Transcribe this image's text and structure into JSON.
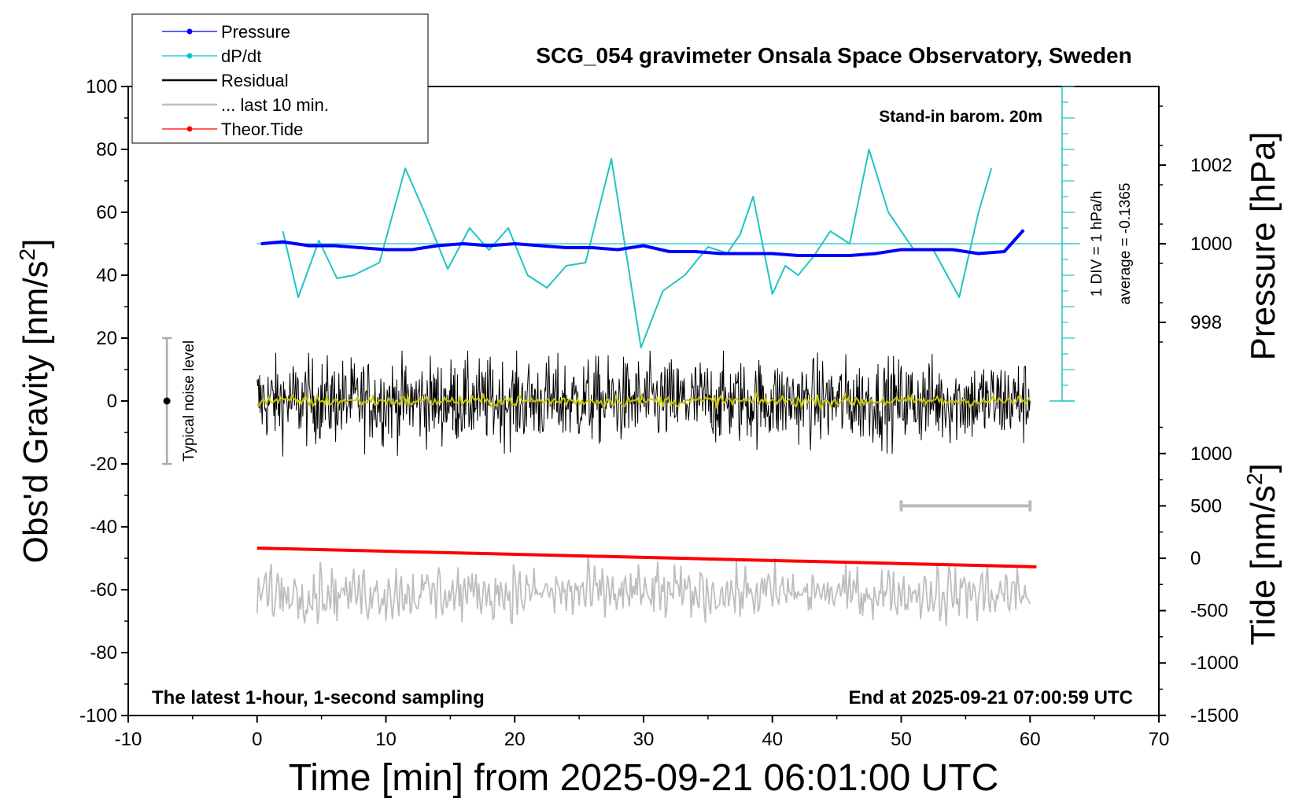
{
  "chart_data": {
    "type": "line",
    "title": "SCG_054 gravimeter Onsala Space Observatory, Sweden",
    "subtitle_top_right": "Stand-in barom. 20m",
    "footer_left": "The latest 1-hour, 1-second sampling",
    "footer_right": "End at 2025-09-21 07:00:59 UTC",
    "xlabel": "Time [min] from 2025-09-21 06:01:00 UTC",
    "ylabel_left": "Obs'd Gravity [nm/s",
    "ylabel_left_sup": "2",
    "ylabel_left_end": "]",
    "ylabel_right_pressure": "Pressure [hPa]",
    "ylabel_right_tide": "Tide [nm/s",
    "ylabel_right_tide_sup": "2",
    "ylabel_right_tide_end": "]",
    "xlim": [
      -10,
      70
    ],
    "xticks": [
      "-10",
      "0",
      "10",
      "20",
      "30",
      "40",
      "50",
      "60",
      "70"
    ],
    "ylim_left": [
      -100,
      100
    ],
    "yticks_left": [
      "100",
      "80",
      "60",
      "40",
      "20",
      "0",
      "-20",
      "-40",
      "-60",
      "-80",
      "-100"
    ],
    "pressure_ticks": [
      "1002",
      "1000",
      "998"
    ],
    "pressure_tick_values": [
      1002,
      1000,
      998
    ],
    "tide_ticks": [
      "1000",
      "500",
      "0",
      "-500",
      "-1000",
      "-1500"
    ],
    "tide_tick_values": [
      1000,
      500,
      0,
      -500,
      -1000,
      -1500
    ],
    "dpdt_scale_label": "1 DIV = 1 hPa/h",
    "dpdt_average_label": "average = -0.1365",
    "noise_label": "Typical noise level",
    "noise_range": [
      -20,
      20
    ],
    "legend": [
      {
        "label": "Pressure",
        "color": "#0000ff",
        "marker": true
      },
      {
        "label": "dP/dt",
        "color": "#00c8c8",
        "marker": true
      },
      {
        "label": "Residual",
        "color": "#000000",
        "marker": false
      },
      {
        "label": "... last 10 min.",
        "color": "#bebebe",
        "marker": false
      },
      {
        "label": "Theor.Tide",
        "color": "#ff0000",
        "marker": true
      }
    ],
    "colors": {
      "pressure": "#0000ff",
      "dpdt": "#20c4c4",
      "residual": "#000000",
      "residual_smooth": "#c8c800",
      "last10": "#bebebe",
      "tide": "#ff0000"
    },
    "series": [
      {
        "name": "Pressure",
        "unit": "hPa",
        "x": [
          0.3,
          2,
          4,
          6,
          8,
          10,
          12,
          14,
          16,
          18,
          20,
          22,
          24,
          26,
          28,
          30,
          32,
          34,
          36,
          38,
          40,
          42,
          44,
          46,
          48,
          50,
          52,
          54,
          56,
          58,
          59.5
        ],
        "y": [
          1000.0,
          1000.05,
          999.95,
          999.95,
          999.9,
          999.85,
          999.85,
          999.95,
          1000.0,
          999.95,
          1000.0,
          999.95,
          999.9,
          999.9,
          999.85,
          999.95,
          999.8,
          999.8,
          999.75,
          999.75,
          999.75,
          999.7,
          999.7,
          999.7,
          999.75,
          999.85,
          999.85,
          999.85,
          999.75,
          999.8,
          1000.35
        ]
      },
      {
        "name": "dP/dt",
        "unit": "nm/s2 plot units (1 DIV = 1 hPa/h)",
        "x": [
          2,
          3.2,
          4.8,
          6.2,
          7.5,
          9.5,
          11.5,
          13,
          14.8,
          16.5,
          18,
          19.5,
          21,
          22.5,
          24,
          25.5,
          27.5,
          29.8,
          31.5,
          33.2,
          35,
          36.5,
          37.5,
          38.5,
          40,
          41,
          42,
          43.2,
          44.5,
          46,
          47.5,
          49,
          51,
          52.5,
          54.5,
          56,
          57
        ],
        "y": [
          54,
          33,
          51,
          39,
          40,
          44,
          74,
          60,
          42,
          55,
          48,
          55,
          40,
          36,
          43,
          44,
          77,
          17,
          35,
          40,
          49,
          47,
          53,
          65,
          34,
          43,
          40,
          46,
          54,
          50,
          80,
          60,
          48,
          48,
          33,
          60,
          74
        ]
      },
      {
        "name": "Residual",
        "unit": "nm/s2",
        "x_range": [
          0,
          60
        ],
        "amplitude_nm_s2": 8,
        "min": -21,
        "max": 16,
        "mean": 0
      },
      {
        "name": "... last 10 min.",
        "unit": "nm/s2",
        "x_range": [
          0,
          60
        ],
        "offset_nm_s2": -61,
        "amplitude_nm_s2": 7
      },
      {
        "name": "Theor.Tide",
        "unit": "nm/s2",
        "x": [
          0,
          60.5
        ],
        "y": [
          97,
          -82
        ]
      }
    ],
    "last10_bar_x": [
      50,
      60
    ],
    "grid": false
  }
}
